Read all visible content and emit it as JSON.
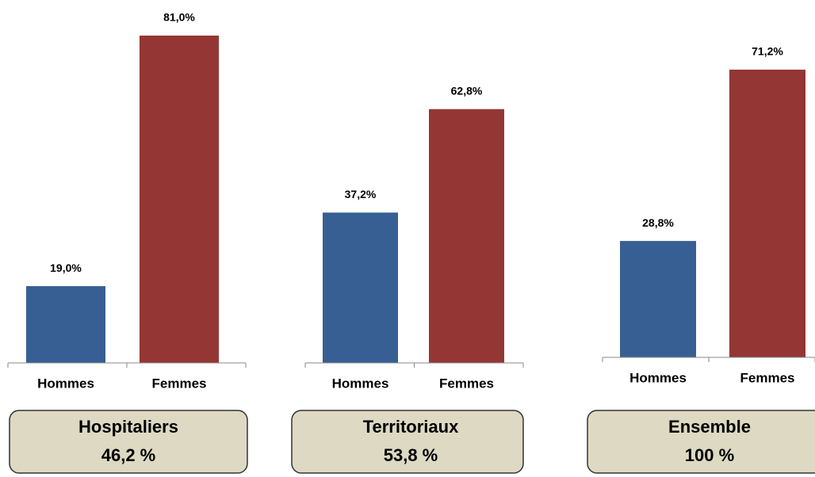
{
  "chart_data": [
    {
      "type": "bar",
      "title": "Hospitaliers",
      "subtitle": "46,2 %",
      "categories": [
        "Hommes",
        "Femmes"
      ],
      "values": [
        19.0,
        81.0
      ],
      "value_labels": [
        "19,0%",
        "81,0%"
      ],
      "colors": [
        "#375f93",
        "#943634"
      ]
    },
    {
      "type": "bar",
      "title": "Territoriaux",
      "subtitle": "53,8 %",
      "categories": [
        "Hommes",
        "Femmes"
      ],
      "values": [
        37.2,
        62.8
      ],
      "value_labels": [
        "37,2%",
        "62,8%"
      ],
      "colors": [
        "#375f93",
        "#943634"
      ]
    },
    {
      "type": "bar",
      "title": "Ensemble",
      "subtitle": "100 %",
      "categories": [
        "Hommes",
        "Femmes"
      ],
      "values": [
        28.8,
        71.2
      ],
      "value_labels": [
        "28,8%",
        "71,2%"
      ],
      "colors": [
        "#375f93",
        "#943634"
      ]
    }
  ]
}
